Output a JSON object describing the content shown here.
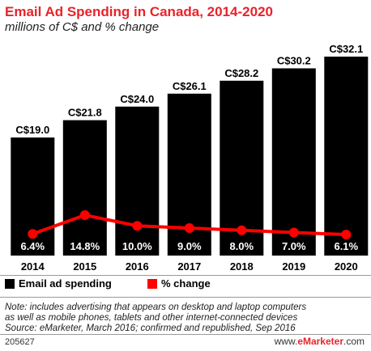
{
  "header": {
    "title": "Email Ad Spending in Canada, 2014-2020",
    "subtitle": "millions of C$ and % change"
  },
  "chart_data": {
    "type": "bar",
    "categories": [
      "2014",
      "2015",
      "2016",
      "2017",
      "2018",
      "2019",
      "2020"
    ],
    "series": [
      {
        "name": "Email ad spending",
        "type": "bar",
        "values": [
          19.0,
          21.8,
          24.0,
          26.1,
          28.2,
          30.2,
          32.1
        ],
        "labels": [
          "C$19.0",
          "C$21.8",
          "C$24.0",
          "C$26.1",
          "C$28.2",
          "C$30.2",
          "C$32.1"
        ],
        "color": "#000000"
      },
      {
        "name": "% change",
        "type": "line",
        "values": [
          6.4,
          14.8,
          10.0,
          9.0,
          8.0,
          7.0,
          6.1
        ],
        "labels": [
          "6.4%",
          "14.8%",
          "10.0%",
          "9.0%",
          "8.0%",
          "7.0%",
          "6.1%"
        ],
        "color": "#ff0000"
      }
    ],
    "grid": false,
    "legend_position": "bottom-left"
  },
  "legend": {
    "bar_label": "Email ad spending",
    "line_label": "% change"
  },
  "note": {
    "line1": "Note: includes advertising that appears on desktop and laptop computers",
    "line2": "as well as mobile phones, tablets and other internet-connected devices",
    "line3": "Source: eMarketer, March 2016; confirmed and republished, Sep 2016"
  },
  "footer": {
    "id": "205627",
    "site_prefix": "www.",
    "site_brand": "eMarketer",
    "site_suffix": ".com"
  }
}
